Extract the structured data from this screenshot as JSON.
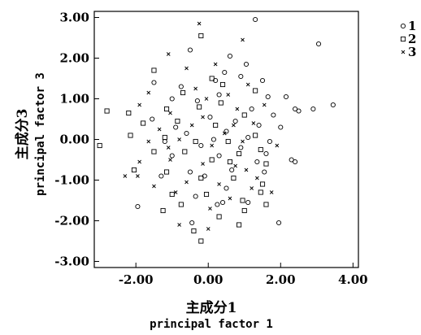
{
  "chart_data": {
    "type": "scatter",
    "title": "",
    "xlabel": "主成分1",
    "xlabel_en": "principal factor 1",
    "ylabel": "主成分3",
    "ylabel_en": "principal factor 3",
    "xlim": [
      -3.15,
      4.15
    ],
    "ylim": [
      -3.15,
      3.15
    ],
    "xticks": [
      -2,
      0,
      2,
      4
    ],
    "xtick_labels": [
      "-2.00",
      "0.00",
      "2.00",
      "4.00"
    ],
    "yticks": [
      3,
      2,
      1,
      0,
      -1,
      -2,
      -3
    ],
    "ytick_labels": [
      "3.00",
      "2.00",
      "1.00",
      "0.00",
      "-1.00",
      "-2.00",
      "-3.00"
    ],
    "grid": false,
    "legend_position": "right, outside plot, top",
    "series": [
      {
        "name": "1",
        "marker": "circle",
        "points": [
          [
            1.3,
            2.95
          ],
          [
            3.05,
            2.35
          ],
          [
            0.6,
            2.05
          ],
          [
            -0.5,
            2.2
          ],
          [
            1.05,
            1.85
          ],
          [
            0.45,
            1.65
          ],
          [
            -1.5,
            1.4
          ],
          [
            -0.75,
            1.3
          ],
          [
            0.2,
            1.45
          ],
          [
            1.5,
            1.45
          ],
          [
            0.9,
            1.55
          ],
          [
            1.65,
            1.05
          ],
          [
            2.15,
            1.05
          ],
          [
            2.4,
            0.75
          ],
          [
            2.5,
            0.7
          ],
          [
            2.9,
            0.75
          ],
          [
            3.45,
            0.85
          ],
          [
            -1.0,
            1.0
          ],
          [
            -0.3,
            0.95
          ],
          [
            0.3,
            1.1
          ],
          [
            1.2,
            0.75
          ],
          [
            1.8,
            0.6
          ],
          [
            -1.55,
            0.5
          ],
          [
            -0.9,
            0.3
          ],
          [
            0.05,
            0.55
          ],
          [
            0.75,
            0.45
          ],
          [
            1.4,
            0.35
          ],
          [
            2.0,
            0.3
          ],
          [
            -0.6,
            0.15
          ],
          [
            0.5,
            0.2
          ],
          [
            1.1,
            0.05
          ],
          [
            1.7,
            -0.05
          ],
          [
            -1.2,
            -0.05
          ],
          [
            -0.2,
            -0.15
          ],
          [
            0.9,
            -0.2
          ],
          [
            2.3,
            -0.5
          ],
          [
            2.4,
            -0.55
          ],
          [
            -1.0,
            -0.4
          ],
          [
            0.3,
            -0.4
          ],
          [
            1.35,
            -0.55
          ],
          [
            1.6,
            -0.35
          ],
          [
            -1.3,
            -0.9
          ],
          [
            -0.5,
            -0.8
          ],
          [
            0.65,
            -0.75
          ],
          [
            1.55,
            -0.8
          ],
          [
            -1.95,
            -1.65
          ],
          [
            -0.35,
            -1.4
          ],
          [
            0.5,
            -1.2
          ],
          [
            1.1,
            -1.55
          ],
          [
            1.95,
            -2.05
          ],
          [
            -0.45,
            -2.05
          ],
          [
            0.4,
            -1.55
          ],
          [
            -0.1,
            -0.9
          ],
          [
            0.15,
            0.0
          ],
          [
            0.25,
            -1.6
          ]
        ]
      },
      {
        "name": "2",
        "marker": "square",
        "points": [
          [
            -0.2,
            2.55
          ],
          [
            -1.5,
            1.7
          ],
          [
            0.1,
            1.5
          ],
          [
            -0.7,
            1.15
          ],
          [
            0.4,
            1.35
          ],
          [
            1.3,
            1.2
          ],
          [
            -2.8,
            0.7
          ],
          [
            -2.2,
            0.65
          ],
          [
            -1.15,
            0.75
          ],
          [
            -0.25,
            0.8
          ],
          [
            0.35,
            0.9
          ],
          [
            1.0,
            0.6
          ],
          [
            -1.8,
            0.4
          ],
          [
            -0.85,
            0.45
          ],
          [
            0.2,
            0.35
          ],
          [
            1.3,
            0.1
          ],
          [
            -3.0,
            -0.15
          ],
          [
            -2.15,
            0.1
          ],
          [
            -1.2,
            0.05
          ],
          [
            -0.35,
            -0.05
          ],
          [
            0.55,
            -0.05
          ],
          [
            1.45,
            -0.25
          ],
          [
            -1.5,
            -0.3
          ],
          [
            -0.65,
            -0.3
          ],
          [
            0.1,
            -0.5
          ],
          [
            0.85,
            -0.35
          ],
          [
            1.6,
            -0.6
          ],
          [
            -2.05,
            -0.75
          ],
          [
            -1.15,
            -0.8
          ],
          [
            -0.2,
            -0.95
          ],
          [
            0.7,
            -0.95
          ],
          [
            1.5,
            -1.1
          ],
          [
            -1.0,
            -1.35
          ],
          [
            -0.05,
            -1.35
          ],
          [
            0.95,
            -1.5
          ],
          [
            1.6,
            -1.6
          ],
          [
            -1.25,
            -1.75
          ],
          [
            -0.75,
            -1.6
          ],
          [
            0.3,
            -1.9
          ],
          [
            0.85,
            -2.1
          ],
          [
            1.0,
            -1.75
          ],
          [
            -0.2,
            -2.5
          ],
          [
            -0.4,
            -2.25
          ],
          [
            1.45,
            -1.3
          ],
          [
            0.6,
            -0.55
          ]
        ]
      },
      {
        "name": "3",
        "marker": "x",
        "points": [
          [
            -0.25,
            2.85
          ],
          [
            0.95,
            2.45
          ],
          [
            -1.1,
            2.1
          ],
          [
            -0.6,
            1.75
          ],
          [
            0.2,
            1.85
          ],
          [
            -1.65,
            1.15
          ],
          [
            -0.35,
            1.25
          ],
          [
            0.55,
            1.1
          ],
          [
            1.1,
            1.35
          ],
          [
            -1.9,
            0.85
          ],
          [
            -1.05,
            0.65
          ],
          [
            -0.15,
            0.55
          ],
          [
            0.8,
            0.75
          ],
          [
            1.55,
            0.85
          ],
          [
            -1.35,
            0.25
          ],
          [
            -0.45,
            0.35
          ],
          [
            0.45,
            0.15
          ],
          [
            1.25,
            0.4
          ],
          [
            -1.65,
            -0.05
          ],
          [
            -0.8,
            0.0
          ],
          [
            0.1,
            -0.15
          ],
          [
            0.95,
            -0.05
          ],
          [
            1.9,
            -0.15
          ],
          [
            -1.9,
            -0.55
          ],
          [
            -1.05,
            -0.5
          ],
          [
            -0.15,
            -0.6
          ],
          [
            0.75,
            -0.65
          ],
          [
            1.35,
            -0.95
          ],
          [
            -1.95,
            -0.9
          ],
          [
            -0.6,
            -1.05
          ],
          [
            0.3,
            -1.1
          ],
          [
            1.2,
            -1.2
          ],
          [
            -1.5,
            -1.15
          ],
          [
            -0.9,
            -1.3
          ],
          [
            0.05,
            -1.7
          ],
          [
            0.6,
            -1.45
          ],
          [
            -0.8,
            -2.1
          ],
          [
            0.0,
            -2.2
          ],
          [
            -2.3,
            -0.9
          ],
          [
            1.75,
            -1.3
          ],
          [
            -0.05,
            1.0
          ],
          [
            0.7,
            0.35
          ],
          [
            -1.1,
            -0.2
          ],
          [
            1.05,
            -0.75
          ]
        ]
      }
    ]
  }
}
